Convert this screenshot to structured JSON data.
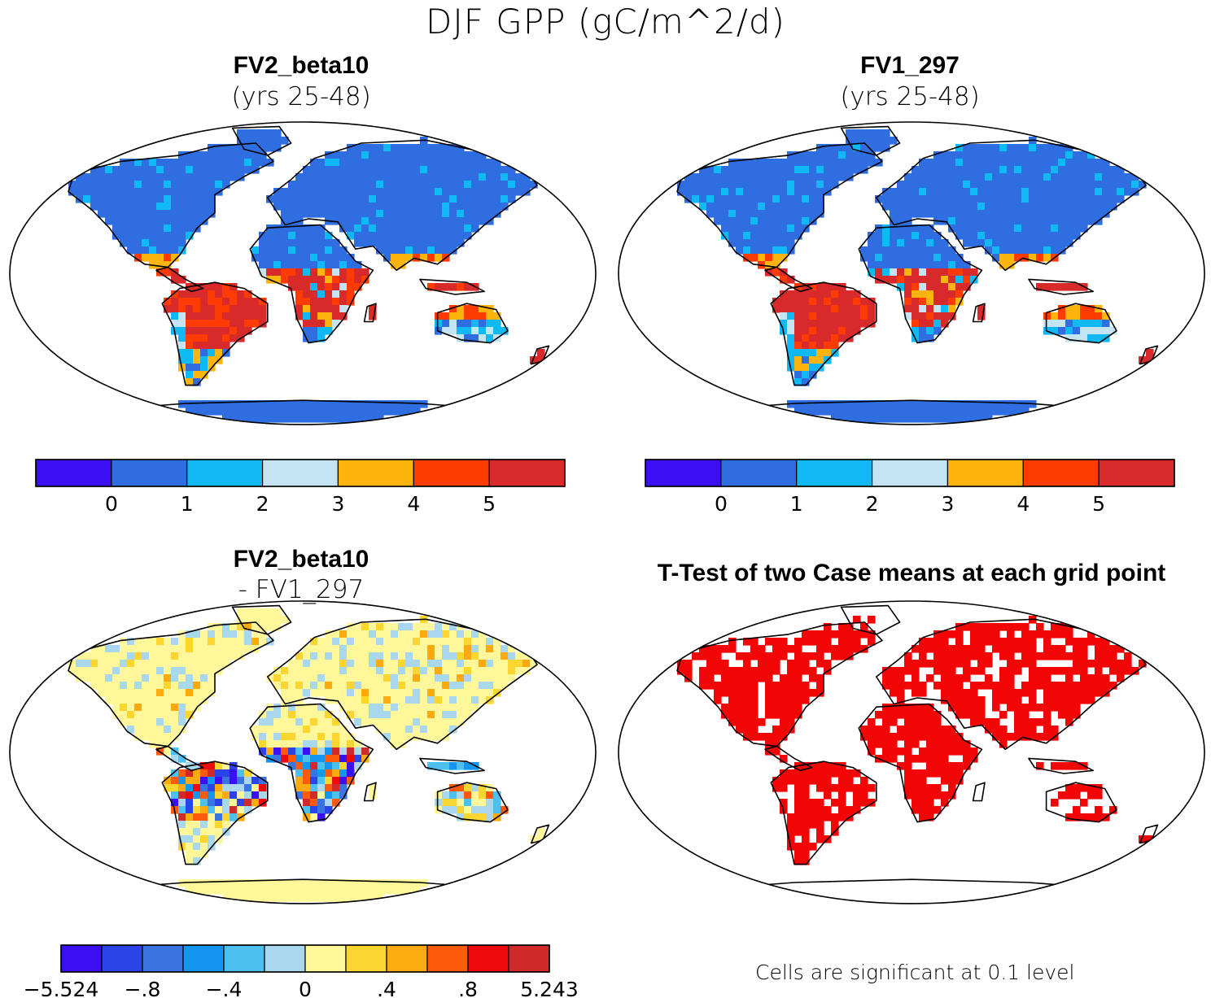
{
  "figure": {
    "title": "DJF GPP (gC/m^2/d)",
    "footnote": "Cells are significant at 0.1 level"
  },
  "panels": {
    "top_left": {
      "title": "FV2_beta10",
      "subtitle": "(yrs 25-48)",
      "map": "mean"
    },
    "top_right": {
      "title": "FV1_297",
      "subtitle": "(yrs 25-48)",
      "map": "mean"
    },
    "bottom_left": {
      "title": "FV2_beta10",
      "subtitle": "- FV1_297",
      "map": "difference"
    },
    "bottom_right": {
      "title": "T-Test of two Case means at each grid point",
      "map": "significance"
    }
  },
  "colorbars": {
    "mean": {
      "colors": [
        "#3a10f2",
        "#2f6ee0",
        "#10b9f4",
        "#c4e4f4",
        "#fdb40d",
        "#fe3b00",
        "#d82a2a"
      ],
      "labels": [
        "0",
        "1",
        "2",
        "3",
        "4",
        "5"
      ]
    },
    "difference": {
      "colors": [
        "#3a10f2",
        "#2a44e8",
        "#3a74e0",
        "#1496f0",
        "#4dc0f0",
        "#a9d8ee",
        "#fff79a",
        "#fcd630",
        "#fbaa10",
        "#fd5a0c",
        "#ee0a0a",
        "#d02a2a"
      ],
      "labels": [
        "-5.524",
        "-.8",
        "-.4",
        "0",
        ".4",
        ".8",
        "5.243"
      ]
    }
  },
  "significance_color": "#f20505",
  "land_legend": {
    "ocean": "#ffffff",
    "coast": "#000000"
  }
}
